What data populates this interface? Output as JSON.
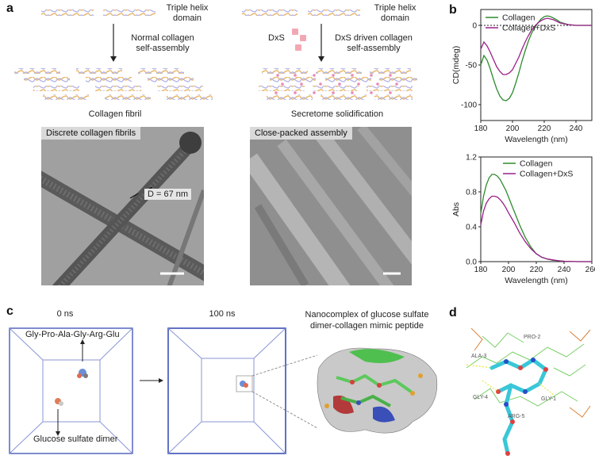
{
  "panels": {
    "a": "a",
    "b": "b",
    "c": "c",
    "d": "d"
  },
  "panel_a": {
    "left": {
      "domain_label": "Triple helix\ndomain",
      "process_label": "Normal collagen\nself-assembly",
      "result_label": "Collagen fibril",
      "tem_tag": "Discrete collagen fibrils",
      "d_spacing": "D = 67 nm"
    },
    "right": {
      "domain_label": "Triple helix\ndomain",
      "dxs_label": "DxS",
      "process_label": "DxS driven collagen\nself-assembly",
      "result_label": "Secretome solidification",
      "tem_tag": "Close-packed assembly"
    },
    "colors": {
      "helix1": "#e8b86a",
      "helix2": "#b6b6e6",
      "dxs": "#f2a8b4",
      "dot": "#e889b8"
    }
  },
  "panel_c": {
    "t0": "0 ns",
    "t1": "100 ns",
    "peptide_label": "Gly-Pro-Ala-Gly-Arg-Glu",
    "dimer_label": "Glucose sulfate dimer",
    "complex_label": "Nanocomplex of glucose sulfate\ndimer-collagen mimic peptide",
    "box_color": "#3b4fb5"
  },
  "panel_d": {
    "residues": [
      "PRO-2",
      "ALA-3",
      "GLY-4",
      "GLY-1",
      "ARG-5"
    ]
  },
  "chart_data": [
    {
      "type": "line",
      "id": "cd",
      "xlabel": "Wavelength (nm)",
      "ylabel": "CD(mdeg)",
      "xlim": [
        180,
        250
      ],
      "ylim": [
        -120,
        20
      ],
      "xticks": [
        180,
        200,
        220,
        240
      ],
      "yticks": [
        0,
        -50,
        -100
      ],
      "series": [
        {
          "name": "Collagen",
          "color": "#2e8b2e",
          "x": [
            180,
            182,
            184,
            186,
            188,
            190,
            192,
            194,
            196,
            198,
            200,
            202,
            204,
            206,
            208,
            210,
            212,
            214,
            216,
            218,
            220,
            222,
            224,
            226,
            228,
            230,
            235,
            240,
            245,
            250
          ],
          "y": [
            -50,
            -38,
            -44,
            -55,
            -68,
            -80,
            -89,
            -94,
            -95,
            -92,
            -85,
            -73,
            -60,
            -45,
            -32,
            -20,
            -10,
            -3,
            3,
            8,
            11,
            12,
            11,
            9,
            7,
            4,
            1,
            0,
            0,
            0
          ]
        },
        {
          "name": "Collagen+DxS",
          "color": "#9b1f8a",
          "x": [
            180,
            182,
            184,
            186,
            188,
            190,
            192,
            194,
            196,
            198,
            200,
            202,
            204,
            206,
            208,
            210,
            212,
            214,
            216,
            218,
            220,
            222,
            224,
            226,
            228,
            230,
            235,
            240,
            245,
            250
          ],
          "y": [
            -30,
            -21,
            -26,
            -34,
            -43,
            -52,
            -58,
            -62,
            -62,
            -60,
            -56,
            -48,
            -40,
            -30,
            -21,
            -13,
            -6,
            -1,
            3,
            6,
            8,
            9,
            8,
            7,
            5,
            3,
            1,
            0,
            0,
            0
          ]
        }
      ],
      "reference_line": 0
    },
    {
      "type": "line",
      "id": "abs",
      "xlabel": "Wavelength (nm)",
      "ylabel": "Abs",
      "xlim": [
        180,
        260
      ],
      "ylim": [
        0,
        1.2
      ],
      "xticks": [
        180,
        200,
        220,
        240,
        260
      ],
      "yticks": [
        "0.0",
        "0.4",
        "0.8",
        "1.2"
      ],
      "series": [
        {
          "name": "Collagen",
          "color": "#2e8b2e",
          "x": [
            180,
            182,
            184,
            186,
            188,
            190,
            192,
            194,
            196,
            198,
            200,
            204,
            208,
            212,
            216,
            220,
            224,
            228,
            232,
            236,
            240,
            250,
            260
          ],
          "y": [
            0.55,
            0.75,
            0.88,
            0.96,
            1.0,
            1.0,
            0.98,
            0.94,
            0.88,
            0.82,
            0.74,
            0.58,
            0.42,
            0.28,
            0.17,
            0.09,
            0.05,
            0.03,
            0.015,
            0.01,
            0.005,
            0.0,
            0.0
          ]
        },
        {
          "name": "Collagen+DxS",
          "color": "#9b1f8a",
          "x": [
            180,
            182,
            184,
            186,
            188,
            190,
            192,
            194,
            196,
            198,
            200,
            204,
            208,
            212,
            216,
            220,
            224,
            228,
            232,
            236,
            240,
            250,
            260
          ],
          "y": [
            0.42,
            0.58,
            0.67,
            0.72,
            0.75,
            0.75,
            0.74,
            0.71,
            0.67,
            0.62,
            0.56,
            0.45,
            0.33,
            0.23,
            0.15,
            0.09,
            0.05,
            0.03,
            0.02,
            0.01,
            0.005,
            0.0,
            0.0
          ]
        }
      ]
    }
  ]
}
